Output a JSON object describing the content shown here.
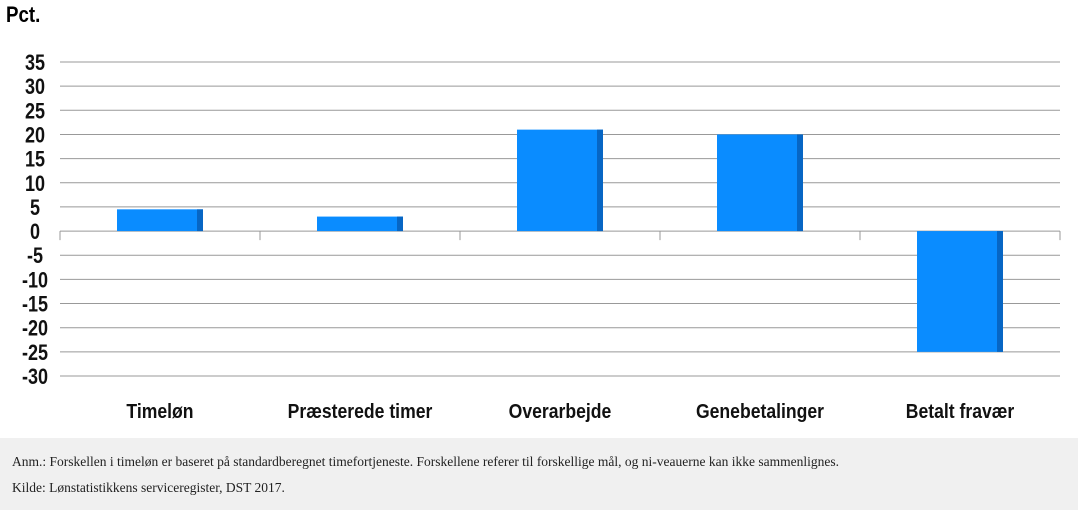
{
  "chart_data": {
    "type": "bar",
    "ylabel": "Pct.",
    "categories": [
      "Timeløn",
      "Præsterede timer",
      "Overarbejde",
      "Genebetalinger",
      "Betalt fravær"
    ],
    "values": [
      4.5,
      3,
      21,
      20,
      -25
    ],
    "ylim": [
      -30,
      35
    ],
    "yticks": [
      35,
      30,
      25,
      20,
      15,
      10,
      5,
      0,
      -5,
      -10,
      -15,
      -20,
      -25,
      -30
    ],
    "ytick_labels": [
      "35",
      "30",
      "25",
      "20",
      "15",
      "10",
      "5",
      "0",
      "-5",
      "-10",
      "-15",
      "-20",
      "-25",
      "-30"
    ],
    "grid": true,
    "bar_color": "#0a8cff",
    "bar_shade_color": "#0766c4",
    "grid_color": "#999999"
  },
  "footer": {
    "note": "Anm.: Forskellen i timeløn er baseret på standardberegnet timefortjeneste. Forskellene referer til forskellige mål, og ni-veauerne kan ikke sammenlignes.",
    "source": "Kilde: Lønstatistikkens serviceregister, DST 2017."
  }
}
